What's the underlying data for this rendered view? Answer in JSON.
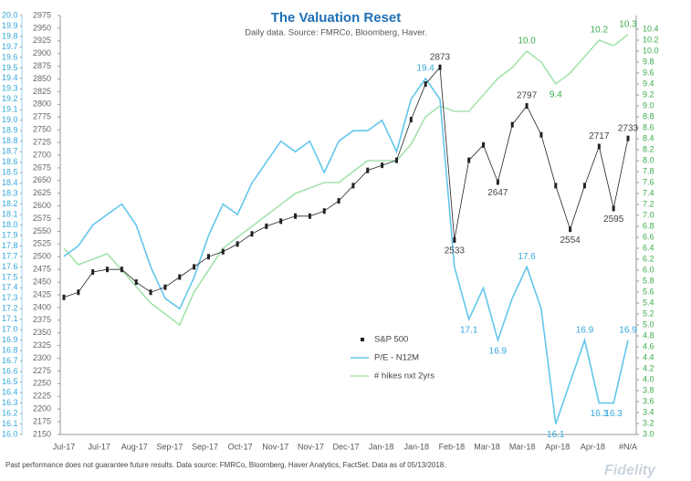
{
  "chart_data": {
    "type": "line",
    "title": "The Valuation Reset",
    "subtitle": "Daily data.  Source: FMRCo, Bloomberg, Haver.",
    "footnote": "Past performance does not guarantee future results. Data source: FMRCo, Bloomberg, Haver Analytics, FactSet.  Data as of 05/13/2018.",
    "logo": "Fidelity",
    "xticks": [
      "Jul-17",
      "Jul-17",
      "Aug-17",
      "Sep-17",
      "Sep-17",
      "Oct-17",
      "Nov-17",
      "Nov-17",
      "Dec-17",
      "Jan-18",
      "Jan-18",
      "Feb-18",
      "Mar-18",
      "Mar-18",
      "Apr-18",
      "Apr-18",
      "#N/A"
    ],
    "ylim": [
      2150,
      2975
    ],
    "yticks": [
      2150,
      2175,
      2200,
      2225,
      2250,
      2275,
      2300,
      2325,
      2350,
      2375,
      2400,
      2425,
      2450,
      2475,
      2500,
      2525,
      2550,
      2575,
      2600,
      2625,
      2650,
      2675,
      2700,
      2725,
      2750,
      2775,
      2800,
      2825,
      2850,
      2875,
      2900,
      2925,
      2950,
      2975
    ],
    "y_outer_lim": [
      16,
      20
    ],
    "y_outer_ticks": [
      {
        "value": 16,
        "label": "16.0"
      },
      16.1,
      16.2,
      16.3,
      16.4,
      16.5,
      16.6,
      16.7,
      16.8,
      16.9,
      {
        "value": 17,
        "label": "17.0"
      },
      17.1,
      17.2,
      17.3,
      17.4,
      17.5,
      17.6,
      17.7,
      17.8,
      17.9,
      {
        "value": 18,
        "label": "18.0"
      },
      18.1,
      18.2,
      18.3,
      18.4,
      18.5,
      18.6,
      18.7,
      18.8,
      18.9,
      {
        "value": 19,
        "label": "19.0"
      },
      19.1,
      19.2,
      19.3,
      19.4,
      19.5,
      19.6,
      19.7,
      19.8,
      19.9,
      {
        "value": 20,
        "label": "20.0"
      }
    ],
    "y2lim": [
      3,
      10.4
    ],
    "y2ticks": [
      {
        "value": 3,
        "label": "3.0"
      },
      3.2,
      3.4,
      3.6,
      3.8,
      {
        "value": 4,
        "label": "4.0"
      },
      4.2,
      4.4,
      4.6,
      4.8,
      {
        "value": 5,
        "label": "5.0"
      },
      5.2,
      5.4,
      5.6,
      5.8,
      {
        "value": 6,
        "label": "6.0"
      },
      6.2,
      6.4,
      6.6,
      6.8,
      {
        "value": 7,
        "label": "7.0"
      },
      7.2,
      7.4,
      7.6,
      7.8,
      {
        "value": 8,
        "label": "8.0"
      },
      8.2,
      8.4,
      8.6,
      8.8,
      {
        "value": 9,
        "label": "9.0"
      },
      9.2,
      9.4,
      9.6,
      9.8,
      {
        "value": 10,
        "label": "10.0"
      },
      10.2,
      10.4
    ],
    "series": [
      {
        "name": "S&P 500",
        "color": "#222222",
        "label_color": "#444444",
        "axis": "y",
        "values": [
          2420,
          2430,
          2470,
          2475,
          2475,
          2450,
          2430,
          2440,
          2460,
          2480,
          2500,
          2510,
          2525,
          2545,
          2560,
          2570,
          2580,
          2580,
          2590,
          2610,
          2640,
          2670,
          2680,
          2690,
          2770,
          2840,
          2873,
          2533,
          2690,
          2720,
          2647,
          2760,
          2797,
          2740,
          2640,
          2554,
          2640,
          2717,
          2595,
          2733
        ],
        "value_labels": [
          null,
          null,
          null,
          null,
          null,
          null,
          null,
          null,
          null,
          null,
          null,
          null,
          null,
          null,
          null,
          null,
          null,
          null,
          null,
          null,
          null,
          null,
          null,
          null,
          null,
          null,
          "2873",
          "2533",
          null,
          null,
          "2647",
          null,
          "2797",
          null,
          null,
          "2554",
          null,
          "2717",
          "2595",
          "2733"
        ]
      },
      {
        "name": "P/E - N12M",
        "color": "#62c6ec",
        "label_color": "#34a8d8",
        "axis": "y_outer",
        "values": [
          17.7,
          17.8,
          18.0,
          18.1,
          18.2,
          18.0,
          17.6,
          17.3,
          17.2,
          17.5,
          17.9,
          18.2,
          18.1,
          18.4,
          18.6,
          18.8,
          18.7,
          18.8,
          18.5,
          18.8,
          18.9,
          18.9,
          19.0,
          18.7,
          19.2,
          19.4,
          19.2,
          17.6,
          17.1,
          17.4,
          16.9,
          17.3,
          17.6,
          17.2,
          16.1,
          16.5,
          16.9,
          16.3,
          16.3,
          16.9
        ],
        "value_labels": [
          null,
          null,
          null,
          null,
          null,
          null,
          null,
          null,
          null,
          null,
          null,
          null,
          null,
          null,
          null,
          null,
          null,
          null,
          null,
          null,
          null,
          null,
          null,
          null,
          null,
          "19.4",
          null,
          null,
          "17.1",
          null,
          "16.9",
          null,
          "17.6",
          null,
          "16.1",
          null,
          "16.9",
          "16.3",
          "16.3",
          "16.9"
        ]
      },
      {
        "name": "# hikes nxt 2yrs",
        "color": "#a3e3ad",
        "label_color": "#3cab4c",
        "axis": "y2",
        "values": [
          6.4,
          6.1,
          6.2,
          6.3,
          6.0,
          5.7,
          5.4,
          5.2,
          5.0,
          5.6,
          6.0,
          6.4,
          6.6,
          6.8,
          7.0,
          7.2,
          7.4,
          7.5,
          7.6,
          7.6,
          7.8,
          8.0,
          8.0,
          8.0,
          8.3,
          8.8,
          9.0,
          8.9,
          8.9,
          9.2,
          9.5,
          9.7,
          10.0,
          9.8,
          9.4,
          9.6,
          9.9,
          10.2,
          10.1,
          10.3
        ],
        "value_labels": [
          null,
          null,
          null,
          null,
          null,
          null,
          null,
          null,
          null,
          null,
          null,
          null,
          null,
          null,
          null,
          null,
          null,
          null,
          null,
          null,
          null,
          null,
          null,
          null,
          null,
          null,
          null,
          null,
          null,
          null,
          null,
          null,
          "10.0",
          null,
          "9.4",
          null,
          null,
          "10.2",
          null,
          "10.3"
        ]
      }
    ]
  }
}
